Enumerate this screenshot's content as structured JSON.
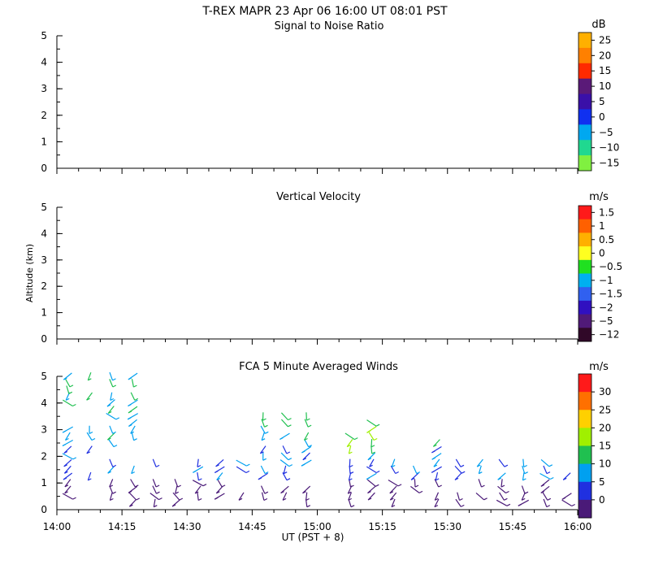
{
  "title": "T-REX  MAPR 23 Apr 06  16:00 UT  08:01  PST",
  "xlabel": "UT  (PST + 8)",
  "ylabel": "Altitude (km)",
  "x_ticks": [
    "14:00",
    "14:15",
    "14:30",
    "14:45",
    "15:00",
    "15:15",
    "15:30",
    "15:45",
    "16:00"
  ],
  "chart_data": [
    {
      "type": "heatmap",
      "title": "Signal to Noise Ratio",
      "unit": "dB",
      "xlim": [
        0,
        120
      ],
      "ylim": [
        0,
        5
      ],
      "y_ticks": [
        0,
        1,
        2,
        3,
        4,
        5
      ],
      "data_gap_minutes": [
        60,
        65
      ],
      "colorbar": {
        "labels": [
          "25",
          "20",
          "15",
          "10",
          "5",
          "0",
          "−5",
          "−10",
          "−15"
        ],
        "colors": [
          "#ffb000",
          "#ff8000",
          "#ff2a00",
          "#5a1a78",
          "#3a10a8",
          "#1030f0",
          "#00a8f0",
          "#20d890",
          "#80f040"
        ]
      }
    },
    {
      "type": "heatmap",
      "title": "Vertical Velocity",
      "unit": "m/s",
      "xlim": [
        0,
        120
      ],
      "ylim": [
        0,
        5
      ],
      "y_ticks": [
        0,
        1,
        2,
        3,
        4,
        5
      ],
      "data_gap_minutes": [
        60,
        65
      ],
      "colorbar": {
        "labels": [
          "1.5",
          "1",
          "0.5",
          "0",
          "−0.5",
          "−1",
          "−1.5",
          "−2",
          "−5",
          "−12"
        ],
        "colors": [
          "#ff1a1a",
          "#ff6000",
          "#ffb000",
          "#ffff20",
          "#20e020",
          "#00b0f0",
          "#3060f0",
          "#3010c0",
          "#501a78",
          "#300828"
        ]
      }
    },
    {
      "type": "scatter",
      "title": "FCA 5 Minute Averaged Winds",
      "unit": "m/s",
      "xlim": [
        0,
        120
      ],
      "ylim": [
        0,
        5
      ],
      "y_ticks": [
        0,
        1,
        2,
        3,
        4,
        5
      ],
      "colorbar": {
        "labels": [
          "30",
          "25",
          "20",
          "15",
          "10",
          "5",
          "0"
        ],
        "colors": [
          "#ff1a1a",
          "#ff7000",
          "#ffd000",
          "#a0f000",
          "#20c050",
          "#00a0f0",
          "#2030e0",
          "#4a1a78"
        ]
      },
      "columns_minutes": [
        2.5,
        7.5,
        12.5,
        17.5,
        22.5,
        27.5,
        32.5,
        37.5,
        42.5,
        47.5,
        52.5,
        57.5,
        67.5,
        72.5,
        77.5,
        82.5,
        87.5,
        92.5,
        97.5,
        102.5,
        107.5,
        112.5,
        117.5
      ]
    }
  ]
}
